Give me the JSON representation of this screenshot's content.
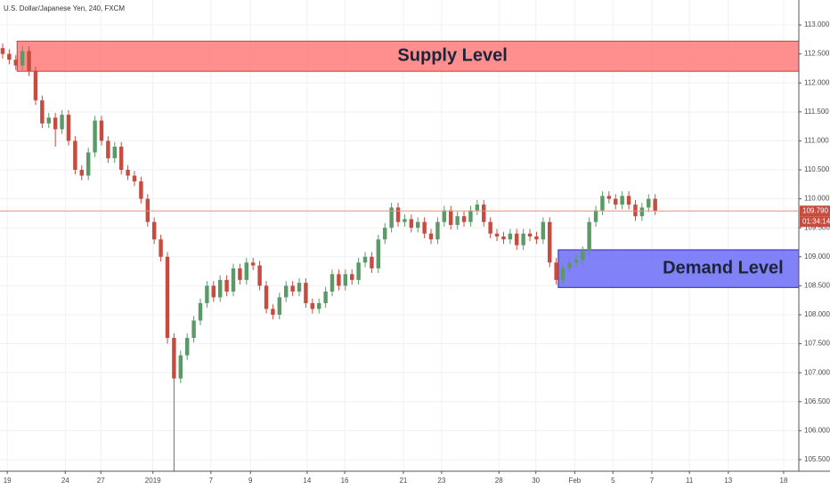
{
  "chart_data": {
    "type": "candlestick",
    "title": "U.S. Dollar/Japanese Yen, 240, FXCM",
    "up_color": "#5b9a68",
    "down_color": "#c74b3f",
    "ylim": [
      105.3,
      113.43
    ],
    "yticks": [
      {
        "value": 105.5,
        "label": "105.500"
      },
      {
        "value": 106,
        "label": "106.000"
      },
      {
        "value": 106.5,
        "label": "106.500"
      },
      {
        "value": 107,
        "label": "107.000"
      },
      {
        "value": 107.5,
        "label": "107.500"
      },
      {
        "value": 108,
        "label": "108.000"
      },
      {
        "value": 108.5,
        "label": "108.500"
      },
      {
        "value": 109,
        "label": "109.000"
      },
      {
        "value": 109.5,
        "label": "109.500"
      },
      {
        "value": 110,
        "label": "110.000"
      },
      {
        "value": 110.5,
        "label": "110.500"
      },
      {
        "value": 111,
        "label": "111.000"
      },
      {
        "value": 111.5,
        "label": "111.500"
      },
      {
        "value": 112,
        "label": "112.000"
      },
      {
        "value": 112.5,
        "label": "112.500"
      },
      {
        "value": 113,
        "label": "113.000"
      }
    ],
    "xlim": [
      -0.4,
      120.8
    ],
    "xticks": [
      {
        "value": 0.7,
        "label": "19"
      },
      {
        "value": 9.5,
        "label": "24"
      },
      {
        "value": 14.9,
        "label": "27"
      },
      {
        "value": 22.8,
        "label": "2019"
      },
      {
        "value": 31.6,
        "label": "7"
      },
      {
        "value": 37.6,
        "label": "9"
      },
      {
        "value": 46.2,
        "label": "14"
      },
      {
        "value": 51.9,
        "label": "16"
      },
      {
        "value": 60.8,
        "label": "21"
      },
      {
        "value": 66.6,
        "label": "23"
      },
      {
        "value": 75.3,
        "label": "28"
      },
      {
        "value": 80.9,
        "label": "30"
      },
      {
        "value": 86.8,
        "label": "Feb"
      },
      {
        "value": 92.6,
        "label": "5"
      },
      {
        "value": 98.5,
        "label": "7"
      },
      {
        "value": 104.2,
        "label": "11"
      },
      {
        "value": 110.1,
        "label": "13"
      },
      {
        "value": 118.5,
        "label": "18"
      }
    ],
    "grid": true,
    "ohlc": [
      [
        112.6,
        112.68,
        112.42,
        112.5
      ],
      [
        112.5,
        112.58,
        112.32,
        112.4
      ],
      [
        112.4,
        112.48,
        112.22,
        112.3
      ],
      [
        112.3,
        112.63,
        112.22,
        112.55
      ],
      [
        112.55,
        112.63,
        112.12,
        112.2
      ],
      [
        112.2,
        112.28,
        111.62,
        111.7
      ],
      [
        111.7,
        111.78,
        111.22,
        111.3
      ],
      [
        111.3,
        111.48,
        111.22,
        111.4
      ],
      [
        111.4,
        111.48,
        110.9,
        111.2
      ],
      [
        111.2,
        111.53,
        111.12,
        111.45
      ],
      [
        111.45,
        111.53,
        110.92,
        111.0
      ],
      [
        111.0,
        111.08,
        110.42,
        110.5
      ],
      [
        110.5,
        110.58,
        110.32,
        110.4
      ],
      [
        110.4,
        110.88,
        110.32,
        110.8
      ],
      [
        110.8,
        111.43,
        110.72,
        111.35
      ],
      [
        111.35,
        111.43,
        110.92,
        111.0
      ],
      [
        111.0,
        111.08,
        110.62,
        110.7
      ],
      [
        110.7,
        110.98,
        110.62,
        110.9
      ],
      [
        110.9,
        110.98,
        110.42,
        110.5
      ],
      [
        110.5,
        110.58,
        110.32,
        110.4
      ],
      [
        110.4,
        110.48,
        110.22,
        110.3
      ],
      [
        110.3,
        110.38,
        109.92,
        110.0
      ],
      [
        110.0,
        110.08,
        109.52,
        109.6
      ],
      [
        109.6,
        109.68,
        109.22,
        109.3
      ],
      [
        109.3,
        109.38,
        108.92,
        109.0
      ],
      [
        109.0,
        109.08,
        107.5,
        107.6
      ],
      [
        107.6,
        107.68,
        105.3,
        106.9
      ],
      [
        106.9,
        107.38,
        106.82,
        107.3
      ],
      [
        107.3,
        107.68,
        107.22,
        107.6
      ],
      [
        107.6,
        107.98,
        107.52,
        107.9
      ],
      [
        107.9,
        108.28,
        107.82,
        108.2
      ],
      [
        108.2,
        108.58,
        108.12,
        108.5
      ],
      [
        108.5,
        108.58,
        108.22,
        108.3
      ],
      [
        108.3,
        108.68,
        108.22,
        108.6
      ],
      [
        108.6,
        108.68,
        108.32,
        108.4
      ],
      [
        108.4,
        108.88,
        108.32,
        108.8
      ],
      [
        108.8,
        108.88,
        108.52,
        108.6
      ],
      [
        108.6,
        108.98,
        108.52,
        108.9
      ],
      [
        108.9,
        108.98,
        108.77,
        108.85
      ],
      [
        108.85,
        108.93,
        108.42,
        108.5
      ],
      [
        108.5,
        108.58,
        108.02,
        108.1
      ],
      [
        108.1,
        108.18,
        107.92,
        108.0
      ],
      [
        108.0,
        108.38,
        107.92,
        108.3
      ],
      [
        108.3,
        108.58,
        108.22,
        108.5
      ],
      [
        108.5,
        108.58,
        108.32,
        108.4
      ],
      [
        108.4,
        108.63,
        108.32,
        108.55
      ],
      [
        108.55,
        108.63,
        108.12,
        108.2
      ],
      [
        108.2,
        108.28,
        108.02,
        108.1
      ],
      [
        108.1,
        108.28,
        108.02,
        108.2
      ],
      [
        108.2,
        108.48,
        108.12,
        108.4
      ],
      [
        108.4,
        108.78,
        108.32,
        108.7
      ],
      [
        108.7,
        108.78,
        108.42,
        108.5
      ],
      [
        108.5,
        108.78,
        108.42,
        108.7
      ],
      [
        108.7,
        108.78,
        108.52,
        108.6
      ],
      [
        108.6,
        108.98,
        108.52,
        108.9
      ],
      [
        108.9,
        109.08,
        108.82,
        109.0
      ],
      [
        109.0,
        109.08,
        108.72,
        108.8
      ],
      [
        108.8,
        109.38,
        108.72,
        109.3
      ],
      [
        109.3,
        109.58,
        109.22,
        109.5
      ],
      [
        109.5,
        109.93,
        109.42,
        109.85
      ],
      [
        109.85,
        109.93,
        109.52,
        109.6
      ],
      [
        109.6,
        109.73,
        109.52,
        109.65
      ],
      [
        109.65,
        109.73,
        109.42,
        109.5
      ],
      [
        109.5,
        109.68,
        109.42,
        109.6
      ],
      [
        109.6,
        109.68,
        109.32,
        109.4
      ],
      [
        109.4,
        109.48,
        109.22,
        109.3
      ],
      [
        109.3,
        109.68,
        109.22,
        109.6
      ],
      [
        109.6,
        109.88,
        109.52,
        109.8
      ],
      [
        109.8,
        109.88,
        109.47,
        109.55
      ],
      [
        109.55,
        109.78,
        109.47,
        109.7
      ],
      [
        109.7,
        109.78,
        109.52,
        109.6
      ],
      [
        109.6,
        109.88,
        109.52,
        109.8
      ],
      [
        109.8,
        109.98,
        109.72,
        109.9
      ],
      [
        109.9,
        109.98,
        109.52,
        109.6
      ],
      [
        109.6,
        109.68,
        109.32,
        109.4
      ],
      [
        109.4,
        109.48,
        109.27,
        109.35
      ],
      [
        109.35,
        109.43,
        109.22,
        109.3
      ],
      [
        109.3,
        109.48,
        109.22,
        109.4
      ],
      [
        109.4,
        109.48,
        109.12,
        109.2
      ],
      [
        109.2,
        109.48,
        109.12,
        109.4
      ],
      [
        109.4,
        109.48,
        109.27,
        109.35
      ],
      [
        109.35,
        109.43,
        109.22,
        109.3
      ],
      [
        109.3,
        109.68,
        109.22,
        109.6
      ],
      [
        109.6,
        109.68,
        108.82,
        108.9
      ],
      [
        108.9,
        108.98,
        108.52,
        108.6
      ],
      [
        108.6,
        108.88,
        108.52,
        108.8
      ],
      [
        108.8,
        108.98,
        108.72,
        108.9
      ],
      [
        108.9,
        109.03,
        108.82,
        108.95
      ],
      [
        108.95,
        109.18,
        108.87,
        109.1
      ],
      [
        109.1,
        109.68,
        109.02,
        109.6
      ],
      [
        109.6,
        109.88,
        109.52,
        109.8
      ],
      [
        109.8,
        110.13,
        109.72,
        110.05
      ],
      [
        110.05,
        110.13,
        109.92,
        110.0
      ],
      [
        110.0,
        110.08,
        109.82,
        109.9
      ],
      [
        109.9,
        110.13,
        109.82,
        110.05
      ],
      [
        110.05,
        110.13,
        109.82,
        109.9
      ],
      [
        109.9,
        109.98,
        109.62,
        109.7
      ],
      [
        109.7,
        109.93,
        109.62,
        109.85
      ],
      [
        109.85,
        110.08,
        109.77,
        110.0
      ],
      [
        110.0,
        110.08,
        109.72,
        109.79
      ]
    ],
    "zones": [
      {
        "name": "Supply Level",
        "top": 112.72,
        "bottom": 112.2,
        "start": 2.2,
        "color": "#ff7b7b",
        "border": "#c04040"
      },
      {
        "name": "Demand Level",
        "top": 109.12,
        "bottom": 108.47,
        "start": 84.3,
        "color": "#6b6bf7",
        "border": "#2a2ab0"
      }
    ],
    "last_price": {
      "value": 109.79,
      "label": "109.790"
    },
    "countdown": "01:34:14"
  }
}
